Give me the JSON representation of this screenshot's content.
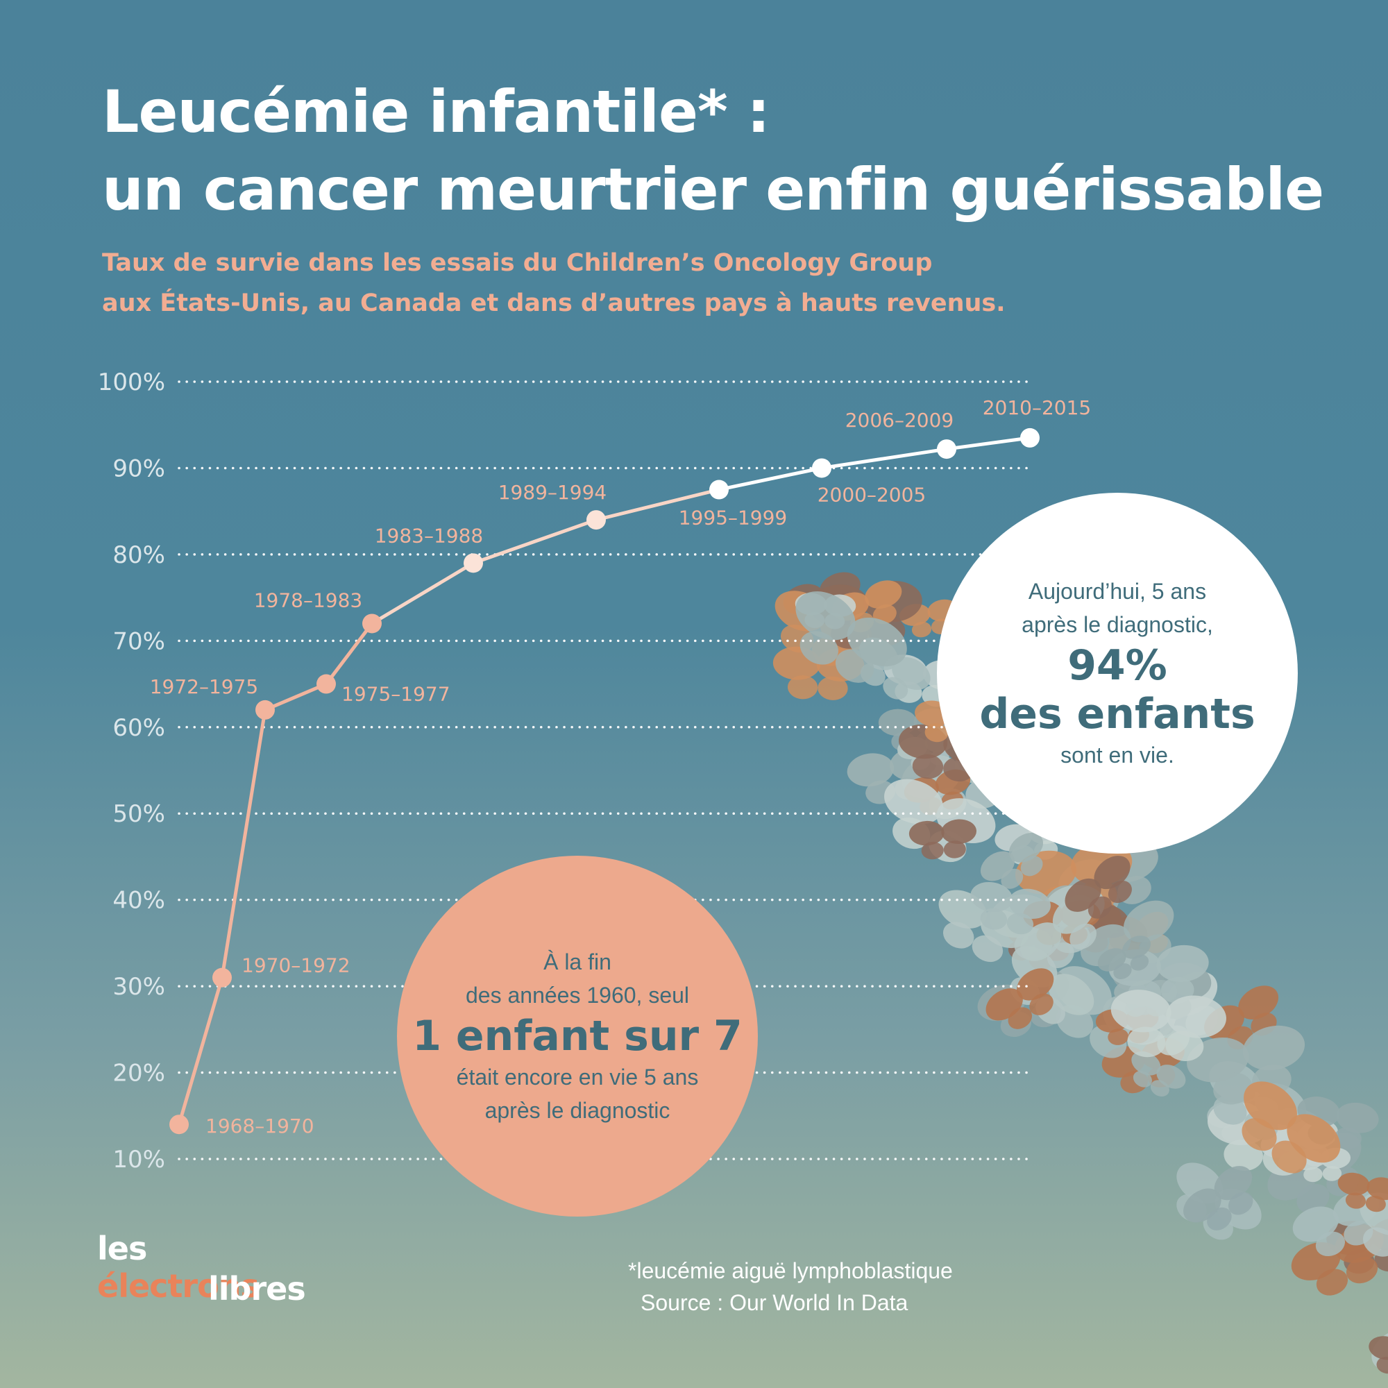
{
  "title": {
    "line1": "Leucémie infantile* :",
    "line2": "un cancer meurtrier enfin guérissable"
  },
  "subtitle": {
    "line1": "Taux de survie dans les essais du Children’s Oncology Group",
    "line2": "aux États-Unis, au Canada et dans d’autres pays à hauts revenus."
  },
  "colors": {
    "line": "#f2b49d",
    "point_early": "#f2b49d",
    "point_late": "#ffffff",
    "gridline": "#ffffff",
    "accent_salmon": "#eda98d",
    "accent_teal_text": "#3f6c7a"
  },
  "chart_data": {
    "type": "line",
    "title": "",
    "xlabel": "",
    "ylabel": "",
    "ylim": [
      10,
      100
    ],
    "yticks": [
      "10%",
      "20%",
      "30%",
      "40%",
      "50%",
      "60%",
      "70%",
      "80%",
      "90%",
      "100%"
    ],
    "grid": "horizontal dotted",
    "legend": "none",
    "series": [
      {
        "points": [
          {
            "period": "1968–1970",
            "value": 14
          },
          {
            "period": "1970–1972",
            "value": 31
          },
          {
            "period": "1972–1975",
            "value": 62
          },
          {
            "period": "1975–1977",
            "value": 65
          },
          {
            "period": "1978–1983",
            "value": 72
          },
          {
            "period": "1983–1988",
            "value": 79
          },
          {
            "period": "1989–1994",
            "value": 84
          },
          {
            "period": "1995–1999",
            "value": 87.5
          },
          {
            "period": "2000–2005",
            "value": 90
          },
          {
            "period": "2006–2009",
            "value": 92.2
          },
          {
            "period": "2010–2015",
            "value": 93.5
          }
        ]
      }
    ]
  },
  "callout_past": {
    "line1": "À la fin",
    "line2": "des années 1960, seul",
    "highlight": "1 enfant sur 7",
    "line3": "était encore en vie 5 ans",
    "line4": "après le diagnostic"
  },
  "callout_today": {
    "line1": "Aujourd’hui, 5 ans",
    "line2": "après le diagnostic,",
    "highlight1": "94%",
    "highlight2": "des enfants",
    "line3": "sont en vie."
  },
  "footnote": {
    "definition": "*leucémie aiguë lymphoblastique",
    "source": "Source : Our World In Data"
  },
  "logo": {
    "word1": "les",
    "word2": "électrons",
    "word3": "libres"
  }
}
